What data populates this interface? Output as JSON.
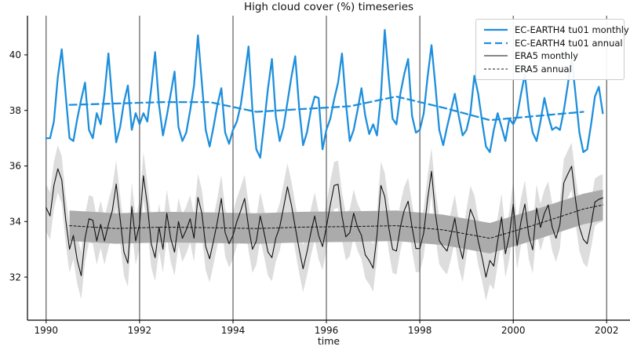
{
  "title": "High cloud cover (%) timeseries",
  "chart_data": {
    "type": "line",
    "title": "High cloud cover (%) timeseries",
    "xlabel": "time",
    "ylabel": "",
    "xlim": [
      1989.6,
      2002.5
    ],
    "ylim": [
      30.45,
      41.41
    ],
    "xticks": [
      1990,
      1992,
      1994,
      1996,
      1998,
      2000,
      2002
    ],
    "yticks": [
      32,
      34,
      36,
      38,
      40
    ],
    "grid": "vertical-gridlines-only",
    "legend_position": "upper right",
    "colors": {
      "ec_earth_blue": "#1E8FDC",
      "era5_black": "#111111",
      "band_monthly_gray": "#DDDDDD",
      "band_annual_gray": "#ABABAB",
      "gridline": "#3C3C3C",
      "axis": "#000000"
    },
    "series": [
      {
        "name": "EC-EARTH4 tu01 monthly",
        "color_key": "ec_earth_blue",
        "style": "solid",
        "width": 2.3,
        "x_start": 1990.0,
        "x_step": 0.0833333,
        "values": [
          37.0,
          37.0,
          37.6,
          39.2,
          40.2,
          38.6,
          37.0,
          36.9,
          37.7,
          38.4,
          39.0,
          37.3,
          37.0,
          37.9,
          37.5,
          38.6,
          40.05,
          38.3,
          36.85,
          37.4,
          38.3,
          38.9,
          37.3,
          37.9,
          37.5,
          37.9,
          37.6,
          38.8,
          40.1,
          38.2,
          37.1,
          37.8,
          38.6,
          39.4,
          37.4,
          36.9,
          37.2,
          38.0,
          38.9,
          40.7,
          39.0,
          37.3,
          36.7,
          37.4,
          38.2,
          38.8,
          37.2,
          36.8,
          37.3,
          37.6,
          38.2,
          39.2,
          40.3,
          38.0,
          36.6,
          36.3,
          37.5,
          38.8,
          39.85,
          37.8,
          36.9,
          37.4,
          38.3,
          39.2,
          39.95,
          38.1,
          36.75,
          37.2,
          38.0,
          38.5,
          38.45,
          36.6,
          37.3,
          37.7,
          38.4,
          39.0,
          40.05,
          38.3,
          36.9,
          37.3,
          38.0,
          38.8,
          37.8,
          37.15,
          37.5,
          37.1,
          38.5,
          40.9,
          39.2,
          37.7,
          37.5,
          38.6,
          39.3,
          39.85,
          37.8,
          37.2,
          37.3,
          37.9,
          39.2,
          40.35,
          38.9,
          37.3,
          36.75,
          37.4,
          38.0,
          38.6,
          37.8,
          37.1,
          37.3,
          37.9,
          39.25,
          38.6,
          37.6,
          36.7,
          36.5,
          37.3,
          37.9,
          37.4,
          36.9,
          37.7,
          37.5,
          37.8,
          38.6,
          39.3,
          38.0,
          37.2,
          36.9,
          37.6,
          38.45,
          37.8,
          37.3,
          37.4,
          37.3,
          38.0,
          38.9,
          39.9,
          38.6,
          37.2,
          36.5,
          36.6,
          37.5,
          38.5,
          38.85,
          37.9
        ]
      },
      {
        "name": "EC-EARTH4 tu01 annual",
        "color_key": "ec_earth_blue",
        "style": "dashed",
        "width": 2.3,
        "x": [
          1990.5,
          1991.5,
          1992.5,
          1993.5,
          1994.5,
          1995.5,
          1996.5,
          1997.5,
          1998.5,
          1999.5,
          2000.5,
          2001.5
        ],
        "values": [
          38.2,
          38.25,
          38.3,
          38.3,
          37.95,
          38.05,
          38.15,
          38.5,
          38.1,
          37.65,
          37.8,
          37.95
        ]
      },
      {
        "name": "ERA5 monthly",
        "color_key": "era5_black",
        "style": "solid",
        "width": 1.1,
        "x_start": 1990.0,
        "x_step": 0.0833333,
        "values": [
          34.5,
          34.2,
          35.3,
          35.9,
          35.5,
          34.1,
          33.0,
          33.5,
          32.6,
          32.05,
          33.4,
          34.1,
          34.05,
          33.3,
          33.9,
          33.3,
          33.9,
          34.4,
          35.35,
          34.1,
          32.9,
          32.5,
          34.55,
          33.3,
          33.9,
          35.65,
          34.6,
          33.2,
          32.7,
          33.8,
          33.0,
          34.3,
          33.4,
          32.9,
          34.0,
          33.4,
          33.7,
          34.1,
          33.4,
          34.87,
          34.3,
          33.1,
          32.66,
          33.3,
          34.0,
          34.83,
          33.6,
          33.2,
          33.5,
          34.0,
          34.4,
          34.83,
          33.8,
          33.0,
          33.3,
          34.2,
          33.6,
          32.9,
          32.7,
          33.4,
          33.8,
          34.5,
          35.25,
          34.6,
          33.8,
          33.0,
          32.3,
          32.9,
          33.6,
          34.2,
          33.5,
          33.1,
          33.8,
          34.6,
          35.3,
          35.34,
          34.2,
          33.45,
          33.6,
          34.3,
          33.8,
          33.5,
          32.8,
          32.6,
          32.32,
          33.5,
          35.3,
          34.9,
          33.8,
          33.0,
          32.94,
          33.8,
          34.4,
          34.73,
          33.8,
          33.03,
          33.03,
          33.6,
          34.8,
          35.81,
          34.3,
          33.31,
          33.1,
          32.94,
          33.5,
          34.12,
          33.2,
          32.66,
          33.6,
          34.44,
          34.1,
          33.3,
          32.7,
          32.0,
          32.6,
          32.4,
          33.3,
          34.16,
          32.84,
          33.5,
          34.63,
          33.13,
          34.0,
          34.63,
          33.5,
          32.98,
          34.49,
          33.79,
          34.3,
          34.6,
          33.8,
          33.4,
          33.9,
          35.4,
          35.7,
          35.99,
          34.8,
          33.8,
          33.36,
          33.2,
          33.9,
          34.7,
          34.8,
          34.85
        ]
      },
      {
        "name": "ERA5 annual",
        "color_key": "era5_black",
        "style": "dashed",
        "width": 1.0,
        "x": [
          1990.5,
          1991.5,
          1992.5,
          1993.5,
          1994.5,
          1995.5,
          1996.5,
          1997.5,
          1998.5,
          1999.5,
          2000.5,
          2001.5,
          2001.92
        ],
        "values": [
          33.85,
          33.75,
          33.8,
          33.78,
          33.75,
          33.8,
          33.82,
          33.85,
          33.7,
          33.4,
          33.9,
          34.45,
          34.6
        ]
      }
    ],
    "bands": [
      {
        "name": "ERA5 monthly ensemble spread",
        "around": "ERA5 monthly",
        "halfwidth": 0.85,
        "color_key": "band_monthly_gray"
      },
      {
        "name": "ERA5 annual ensemble spread",
        "around": "ERA5 annual",
        "halfwidth": 0.55,
        "color_key": "band_annual_gray"
      }
    ]
  },
  "legend": {
    "items": [
      {
        "label": "EC-EARTH4 tu01 monthly"
      },
      {
        "label": "EC-EARTH4 tu01 annual"
      },
      {
        "label": "ERA5 monthly"
      },
      {
        "label": "ERA5 annual"
      }
    ]
  }
}
